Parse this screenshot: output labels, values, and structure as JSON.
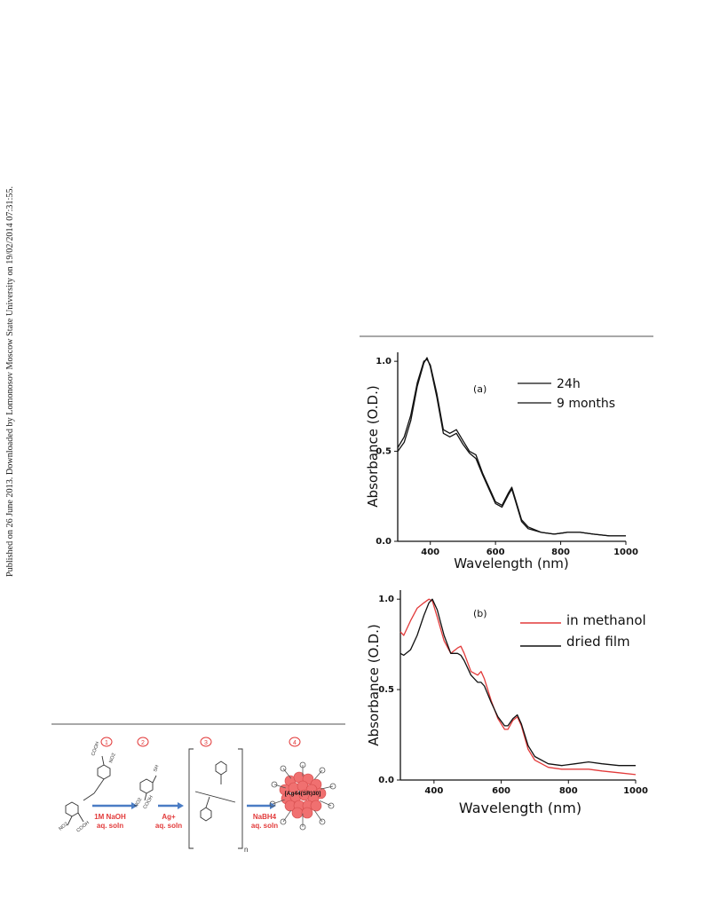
{
  "side_note": "Published on 26 June 2013. Downloaded by Lomonosov Moscow State University on 19/02/2014 07:31:55.",
  "colors": {
    "rule": "#a8a8a8",
    "red": "#e23a3a",
    "black": "#111111",
    "arrow": "#4a7cc4",
    "cluster": "#f07070"
  },
  "chart_data": [
    {
      "type": "line",
      "panel_label": "(a)",
      "xlabel": "Wavelength (nm)",
      "ylabel": "Absorbance (O.D.)",
      "xlim": [
        300,
        1000
      ],
      "ylim": [
        0,
        1.05
      ],
      "xticks": [
        400,
        600,
        800,
        1000
      ],
      "yticks": [
        0.0,
        0.5,
        1.0
      ],
      "xtick_labels": [
        "400",
        "600",
        "800",
        "1000"
      ],
      "ytick_labels": [
        "0.0",
        "0.5",
        "1.0"
      ],
      "legend_position": "top-right",
      "series": [
        {
          "name": "24h",
          "color": "#111111",
          "x": [
            300,
            320,
            340,
            360,
            380,
            390,
            400,
            420,
            440,
            460,
            480,
            500,
            520,
            540,
            560,
            580,
            600,
            620,
            640,
            650,
            660,
            680,
            700,
            740,
            780,
            820,
            860,
            900,
            950,
            1000
          ],
          "y": [
            0.52,
            0.58,
            0.7,
            0.88,
            1.0,
            1.01,
            0.98,
            0.82,
            0.62,
            0.6,
            0.62,
            0.56,
            0.5,
            0.48,
            0.38,
            0.3,
            0.22,
            0.2,
            0.27,
            0.3,
            0.24,
            0.12,
            0.08,
            0.05,
            0.04,
            0.05,
            0.05,
            0.04,
            0.03,
            0.03
          ]
        },
        {
          "name": "9 months",
          "color": "#111111",
          "x": [
            300,
            320,
            340,
            360,
            380,
            390,
            400,
            420,
            440,
            460,
            480,
            500,
            520,
            540,
            560,
            580,
            600,
            620,
            640,
            650,
            660,
            680,
            700,
            740,
            780,
            820,
            860,
            900,
            950,
            1000
          ],
          "y": [
            0.5,
            0.55,
            0.67,
            0.86,
            0.99,
            1.02,
            0.97,
            0.8,
            0.6,
            0.58,
            0.6,
            0.54,
            0.49,
            0.46,
            0.37,
            0.29,
            0.21,
            0.19,
            0.26,
            0.29,
            0.23,
            0.11,
            0.07,
            0.05,
            0.04,
            0.05,
            0.05,
            0.04,
            0.03,
            0.03
          ]
        }
      ]
    },
    {
      "type": "line",
      "panel_label": "(b)",
      "xlabel": "Wavelength (nm)",
      "ylabel": "Absorbance (O.D.)",
      "xlim": [
        300,
        1000
      ],
      "ylim": [
        0,
        1.05
      ],
      "xticks": [
        400,
        600,
        800,
        1000
      ],
      "yticks": [
        0.0,
        0.5,
        1.0
      ],
      "xtick_labels": [
        "400",
        "600",
        "800",
        "1000"
      ],
      "ytick_labels": [
        "0.0",
        "0.5",
        "1.0"
      ],
      "legend_position": "top-right",
      "series": [
        {
          "name": "in methanol",
          "color": "#e23a3a",
          "x": [
            300,
            310,
            330,
            350,
            370,
            385,
            395,
            410,
            430,
            450,
            470,
            480,
            490,
            510,
            530,
            540,
            550,
            570,
            590,
            610,
            620,
            635,
            648,
            660,
            680,
            700,
            740,
            780,
            820,
            860,
            900,
            950,
            1000
          ],
          "y": [
            0.82,
            0.8,
            0.88,
            0.95,
            0.98,
            1.0,
            0.99,
            0.9,
            0.77,
            0.7,
            0.73,
            0.74,
            0.7,
            0.6,
            0.58,
            0.6,
            0.56,
            0.44,
            0.34,
            0.28,
            0.28,
            0.33,
            0.35,
            0.3,
            0.17,
            0.11,
            0.07,
            0.06,
            0.06,
            0.06,
            0.05,
            0.04,
            0.03
          ]
        },
        {
          "name": "dried film",
          "color": "#111111",
          "x": [
            300,
            310,
            330,
            350,
            370,
            385,
            395,
            410,
            430,
            450,
            470,
            480,
            490,
            510,
            530,
            540,
            550,
            570,
            590,
            610,
            620,
            635,
            648,
            660,
            680,
            700,
            740,
            780,
            820,
            860,
            900,
            950,
            1000
          ],
          "y": [
            0.7,
            0.69,
            0.72,
            0.8,
            0.91,
            0.98,
            1.0,
            0.94,
            0.8,
            0.7,
            0.7,
            0.69,
            0.66,
            0.58,
            0.54,
            0.54,
            0.52,
            0.43,
            0.35,
            0.3,
            0.3,
            0.34,
            0.36,
            0.31,
            0.19,
            0.13,
            0.09,
            0.08,
            0.09,
            0.1,
            0.09,
            0.08,
            0.08
          ]
        }
      ]
    }
  ],
  "scheme": {
    "steps": [
      "1",
      "2",
      "3",
      "4"
    ],
    "reagents": [
      {
        "line1": "1M NaOH",
        "line2": "aq. soln"
      },
      {
        "line1": "Ag+",
        "line2": "aq. soln"
      },
      {
        "line1": "NaBH4",
        "line2": "aq. soln"
      }
    ],
    "cluster_label": "[Ag44(SR)30]",
    "labels": {
      "cooh": "COOH",
      "no2": "NO2",
      "sh": "SH",
      "n": "n"
    }
  }
}
